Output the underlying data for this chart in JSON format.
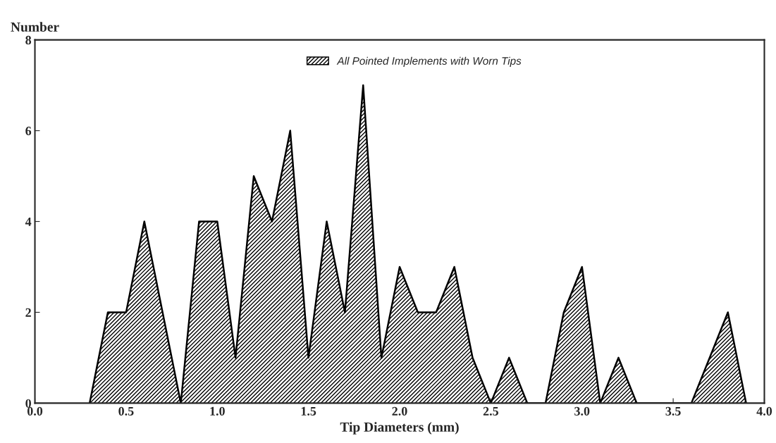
{
  "chart_data": {
    "type": "area",
    "xlabel": "Tip Diameters (mm)",
    "ylabel": "Number",
    "x": [
      0.3,
      0.4,
      0.5,
      0.6,
      0.7,
      0.8,
      0.9,
      1.0,
      1.1,
      1.2,
      1.3,
      1.4,
      1.5,
      1.6,
      1.7,
      1.8,
      1.9,
      2.0,
      2.1,
      2.2,
      2.3,
      2.4,
      2.5,
      2.6,
      2.7,
      2.8,
      2.9,
      3.0,
      3.1,
      3.2,
      3.3,
      3.4,
      3.5,
      3.6,
      3.7,
      3.8,
      3.9
    ],
    "series": [
      {
        "name": "All Pointed Implements with Worn Tips",
        "color": "#000000",
        "values": [
          0,
          2,
          2,
          4,
          2,
          0,
          4,
          4,
          1,
          5,
          4,
          6,
          1,
          4,
          2,
          7,
          1,
          3,
          2,
          2,
          3,
          1,
          0,
          1,
          0,
          0,
          2,
          3,
          0,
          1,
          0,
          0,
          0,
          0,
          1,
          2,
          0
        ]
      }
    ],
    "xlim": [
      0,
      4
    ],
    "ylim": [
      0,
      8
    ],
    "xticks": [
      {
        "value": 0,
        "label": "0.0"
      },
      0.5,
      {
        "value": 1,
        "label": "1.0"
      },
      1.5,
      {
        "value": 2,
        "label": "2.0"
      },
      2.5,
      {
        "value": 3,
        "label": "3.0"
      },
      3.5,
      {
        "value": 4,
        "label": "4.0"
      }
    ],
    "yticks": [
      0,
      2,
      4,
      6,
      8
    ],
    "legend": "top",
    "grid": false
  }
}
